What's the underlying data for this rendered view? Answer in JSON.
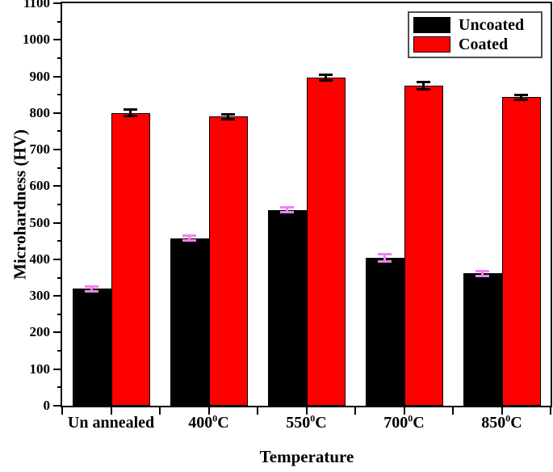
{
  "figure": {
    "background": "#ffffff",
    "frame_color": "#000000"
  },
  "chart_data": {
    "type": "bar",
    "title": "",
    "xlabel": "Temperature",
    "ylabel": "Microhardness (HV)",
    "ylim": [
      0,
      1100
    ],
    "y_major_step": 100,
    "y_minor_step": 50,
    "grid": false,
    "legend_position": "top-right",
    "categories": [
      {
        "main": "Un annealed",
        "sup": "",
        "tail": ""
      },
      {
        "main": "400",
        "sup": "0",
        "tail": "C"
      },
      {
        "main": "550",
        "sup": "0",
        "tail": "C"
      },
      {
        "main": "700",
        "sup": "0",
        "tail": "C"
      },
      {
        "main": "850",
        "sup": "0",
        "tail": "C"
      }
    ],
    "series": [
      {
        "name": "Uncoated",
        "color": "#000000",
        "border_color": "#000000",
        "error_color": "#EE82EE",
        "values": [
          320,
          458,
          535,
          405,
          362
        ],
        "errors": [
          10,
          10,
          10,
          13,
          10
        ]
      },
      {
        "name": "Coated",
        "color": "#FE0000",
        "border_color": "#000000",
        "error_color": "#000000",
        "values": [
          800,
          790,
          896,
          875,
          843
        ],
        "errors": [
          12,
          10,
          11,
          13,
          10
        ]
      }
    ]
  }
}
